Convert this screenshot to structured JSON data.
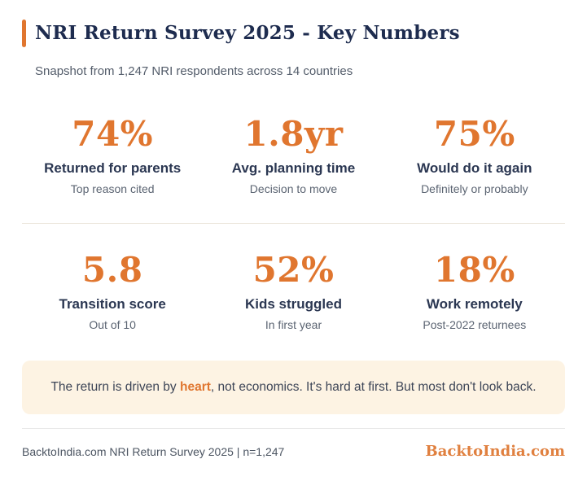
{
  "page": {
    "title": "NRI Return Survey 2025 - Key Numbers",
    "subtitle": "Snapshot from 1,247 NRI respondents across 14 countries"
  },
  "stats": [
    {
      "value": "74%",
      "label": "Returned for parents",
      "sub": "Top reason cited"
    },
    {
      "value": "1.8yr",
      "label": "Avg. planning time",
      "sub": "Decision to move"
    },
    {
      "value": "75%",
      "label": "Would do it again",
      "sub": "Definitely or probably"
    },
    {
      "value": "5.8",
      "label": "Transition score",
      "sub": "Out of 10"
    },
    {
      "value": "52%",
      "label": "Kids struggled",
      "sub": "In first year"
    },
    {
      "value": "18%",
      "label": "Work remotely",
      "sub": "Post-2022 returnees"
    }
  ],
  "quote": {
    "before": "The return is driven by ",
    "highlight": "heart",
    "after": ", not economics. It's hard at first. But most don't look back."
  },
  "footer": {
    "source": "BacktoIndia.com NRI Return Survey 2025 | n=1,247",
    "brand": "BacktoIndia.com"
  },
  "colors": {
    "accent_orange": "#e0762f",
    "title_navy": "#1e2c4f",
    "muted_gray": "#535c6a",
    "quote_background": "#fdf3e3"
  }
}
